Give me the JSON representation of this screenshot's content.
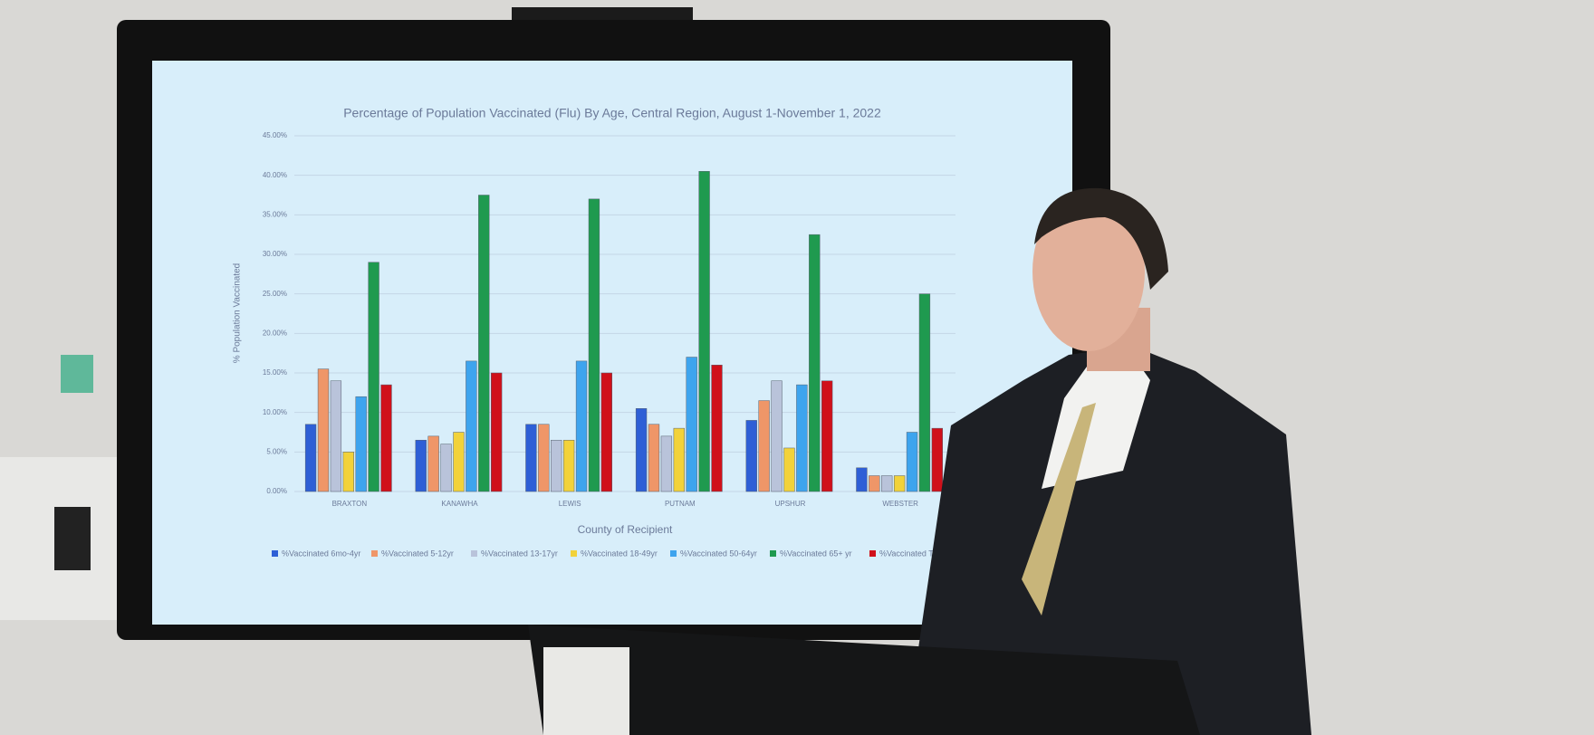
{
  "chart_data": {
    "type": "bar",
    "title": "Percentage of Population Vaccinated (Flu) By Age, Central Region, August 1-November 1, 2022",
    "y_label": "% Population Vaccinated",
    "x_label": "County of Recipient",
    "categories": [
      "BRAXTON",
      "KANAWHA",
      "LEWIS",
      "PUTNAM",
      "UPSHUR",
      "WEBSTER"
    ],
    "series": [
      {
        "name": "%Vaccinated 6mo-4yr",
        "color": "#2e5fd6",
        "values": [
          8.5,
          6.5,
          8.5,
          10.5,
          9,
          3
        ]
      },
      {
        "name": "%Vaccinated 5-12yr",
        "color": "#ef9668",
        "values": [
          15.5,
          7,
          8.5,
          8.5,
          11.5,
          2
        ]
      },
      {
        "name": "%Vaccinated 13-17yr",
        "color": "#b9c3da",
        "values": [
          14,
          6,
          6.5,
          7,
          14,
          2
        ]
      },
      {
        "name": "%Vaccinated 18-49yr",
        "color": "#f2d23a",
        "values": [
          5,
          7.5,
          6.5,
          8,
          5.5,
          2
        ]
      },
      {
        "name": "%Vaccinated 50-64yr",
        "color": "#3ea4ee",
        "values": [
          12,
          16.5,
          16.5,
          17,
          13.5,
          7.5
        ]
      },
      {
        "name": "%Vaccinated 65+ yr",
        "color": "#1f9a4f",
        "values": [
          29,
          37.5,
          37,
          40.5,
          32.5,
          25
        ]
      },
      {
        "name": "%Vaccinated Total",
        "color": "#d0101a",
        "values": [
          13.5,
          15,
          15,
          16,
          14,
          8
        ]
      }
    ],
    "ylim": [
      0,
      45
    ],
    "yticks": [
      {
        "value": 0,
        "label": "0.00%"
      },
      {
        "value": 5,
        "label": "5.00%"
      },
      {
        "value": 10,
        "label": "10.00%"
      },
      {
        "value": 15,
        "label": "15.00%"
      },
      {
        "value": 20,
        "label": "20.00%"
      },
      {
        "value": 25,
        "label": "25.00%"
      },
      {
        "value": 30,
        "label": "30.00%"
      },
      {
        "value": 35,
        "label": "35.00%"
      },
      {
        "value": 40,
        "label": "40.00%"
      },
      {
        "value": 45,
        "label": "45.00%"
      }
    ],
    "grid": true,
    "legend": "bottom"
  }
}
